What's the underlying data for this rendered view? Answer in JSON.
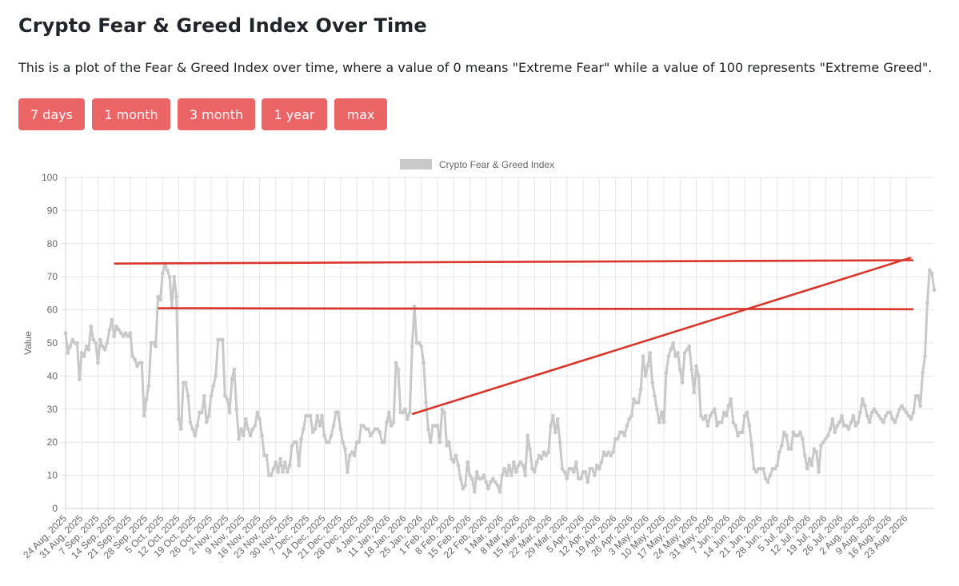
{
  "page": {
    "title": "Crypto Fear & Greed Index Over Time",
    "description": "This is a plot of the Fear & Greed Index over time, where a value of 0 means \"Extreme Fear\" while a value of 100 represents \"Extreme Greed\"."
  },
  "range_buttons": [
    "7 days",
    "1 month",
    "3 month",
    "1 year",
    "max"
  ],
  "colors": {
    "button": "#ec6566",
    "series": "#c9c9c9",
    "grid": "#e6e6e6",
    "annotation": "#d9352a"
  },
  "chart_data": {
    "type": "line",
    "title": "",
    "xlabel": "",
    "ylabel": "Value",
    "ylim": [
      0,
      100
    ],
    "yticks": [
      0,
      10,
      20,
      30,
      40,
      50,
      60,
      70,
      80,
      90,
      100
    ],
    "grid": true,
    "legend_position": "top-center",
    "x_tick_labels": [
      "24 Aug, 2025",
      "31 Aug, 2025",
      "7 Sep, 2025",
      "14 Sep, 2025",
      "21 Sep, 2025",
      "28 Sep, 2025",
      "5 Oct, 2025",
      "12 Oct, 2025",
      "19 Oct, 2025",
      "26 Oct, 2025",
      "2 Nov, 2025",
      "9 Nov, 2025",
      "16 Nov, 2025",
      "23 Nov, 2025",
      "30 Nov, 2025",
      "7 Dec, 2025",
      "14 Dec, 2025",
      "21 Dec, 2025",
      "28 Dec, 2025",
      "4 Jan, 2026",
      "11 Jan, 2026",
      "18 Jan, 2026",
      "25 Jan, 2026",
      "1 Feb, 2026",
      "8 Feb, 2026",
      "15 Feb, 2026",
      "22 Feb, 2026",
      "1 Mar, 2026",
      "8 Mar, 2026",
      "15 Mar, 2026",
      "22 Mar, 2026",
      "29 Mar, 2026",
      "5 Apr, 2026",
      "12 Apr, 2026",
      "19 Apr, 2026",
      "26 Apr, 2026",
      "3 May, 2026",
      "10 May, 2026",
      "17 May, 2026",
      "24 May, 2026",
      "31 May, 2026",
      "7 Jun, 2026",
      "14 Jun, 2026",
      "21 Jun, 2026",
      "28 Jun, 2026",
      "5 Jul, 2026",
      "12 Jul, 2026",
      "19 Jul, 2026",
      "26 Jul, 2026",
      "2 Aug, 2026",
      "9 Aug, 2026",
      "16 Aug, 2026",
      "23 Aug, 2026"
    ],
    "series": [
      {
        "name": "Crypto Fear & Greed Index",
        "start_date": "2025-08-24",
        "step_days": 1,
        "values": [
          53,
          47,
          49,
          51,
          50,
          50,
          39,
          47,
          46,
          49,
          48,
          55,
          51,
          50,
          44,
          51,
          49,
          48,
          50,
          54,
          57,
          52,
          55,
          54,
          53,
          52,
          53,
          52,
          53,
          46,
          45,
          43,
          44,
          44,
          28,
          33,
          37,
          50,
          50,
          49,
          64,
          63,
          71,
          74,
          72,
          70,
          61,
          70,
          64,
          27,
          24,
          38,
          38,
          34,
          26,
          24,
          22,
          25,
          29,
          29,
          34,
          26,
          28,
          34,
          37,
          40,
          51,
          51,
          51,
          34,
          33,
          29,
          39,
          42,
          30,
          21,
          24,
          22,
          27,
          24,
          22,
          24,
          25,
          29,
          27,
          22,
          16,
          16,
          10,
          10,
          12,
          14,
          11,
          15,
          11,
          14,
          11,
          13,
          19,
          20,
          20,
          13,
          21,
          24,
          28,
          28,
          28,
          23,
          24,
          28,
          25,
          28,
          22,
          20,
          20,
          22,
          25,
          29,
          29,
          24,
          20,
          18,
          11,
          16,
          17,
          16,
          20,
          20,
          25,
          25,
          24,
          24,
          22,
          23,
          24,
          24,
          23,
          20,
          20,
          26,
          29,
          25,
          26,
          44,
          42,
          29,
          29,
          30,
          27,
          29,
          49,
          61,
          50,
          50,
          49,
          44,
          32,
          24,
          20,
          25,
          25,
          25,
          20,
          30,
          29,
          19,
          20,
          15,
          14,
          16,
          13,
          9,
          6,
          7,
          14,
          10,
          9,
          5,
          11,
          9,
          9,
          10,
          8,
          6,
          8,
          9,
          8,
          7,
          5,
          10,
          12,
          10,
          13,
          10,
          14,
          11,
          13,
          14,
          13,
          10,
          22,
          18,
          12,
          11,
          14,
          16,
          15,
          17,
          16,
          17,
          25,
          28,
          23,
          27,
          20,
          12,
          11,
          9,
          12,
          12,
          11,
          14,
          9,
          9,
          11,
          11,
          8,
          12,
          12,
          10,
          13,
          12,
          14,
          17,
          16,
          17,
          16,
          17,
          21,
          21,
          23,
          23,
          22,
          25,
          27,
          28,
          33,
          32,
          32,
          36,
          46,
          40,
          43,
          47,
          38,
          34,
          30,
          26,
          29,
          26,
          41,
          46,
          48,
          50,
          46,
          47,
          42,
          38,
          47,
          48,
          49,
          42,
          35,
          43,
          40,
          28,
          27,
          28,
          25,
          28,
          29,
          30,
          25,
          26,
          26,
          29,
          28,
          31,
          33,
          26,
          25,
          22,
          23,
          23,
          28,
          29,
          25,
          19,
          12,
          11,
          12,
          12,
          12,
          9,
          8,
          10,
          12,
          12,
          13,
          17,
          19,
          23,
          22,
          18,
          18,
          23,
          22,
          22,
          23,
          21,
          16,
          12,
          15,
          13,
          18,
          17,
          11,
          19,
          20,
          21,
          22,
          24,
          27,
          23,
          25,
          26,
          28,
          25,
          25,
          24,
          26,
          28,
          25,
          26,
          29,
          33,
          31,
          28,
          26,
          29,
          30,
          29,
          28,
          27,
          26,
          28,
          29,
          29,
          27,
          26,
          28,
          30,
          31,
          30,
          29,
          28,
          27,
          29,
          34,
          34,
          31,
          41,
          46,
          62,
          72,
          71,
          66
        ]
      }
    ],
    "annotations": [
      {
        "type": "line",
        "from": [
          "2025-09-14",
          74
        ],
        "to": [
          "2026-08-26",
          75
        ]
      },
      {
        "type": "line",
        "from": [
          "2025-10-03",
          60.5
        ],
        "to": [
          "2026-08-26",
          60.2
        ]
      },
      {
        "type": "line",
        "from": [
          "2026-01-21",
          28.5
        ],
        "to": [
          "2026-08-25",
          75.8
        ]
      }
    ]
  }
}
